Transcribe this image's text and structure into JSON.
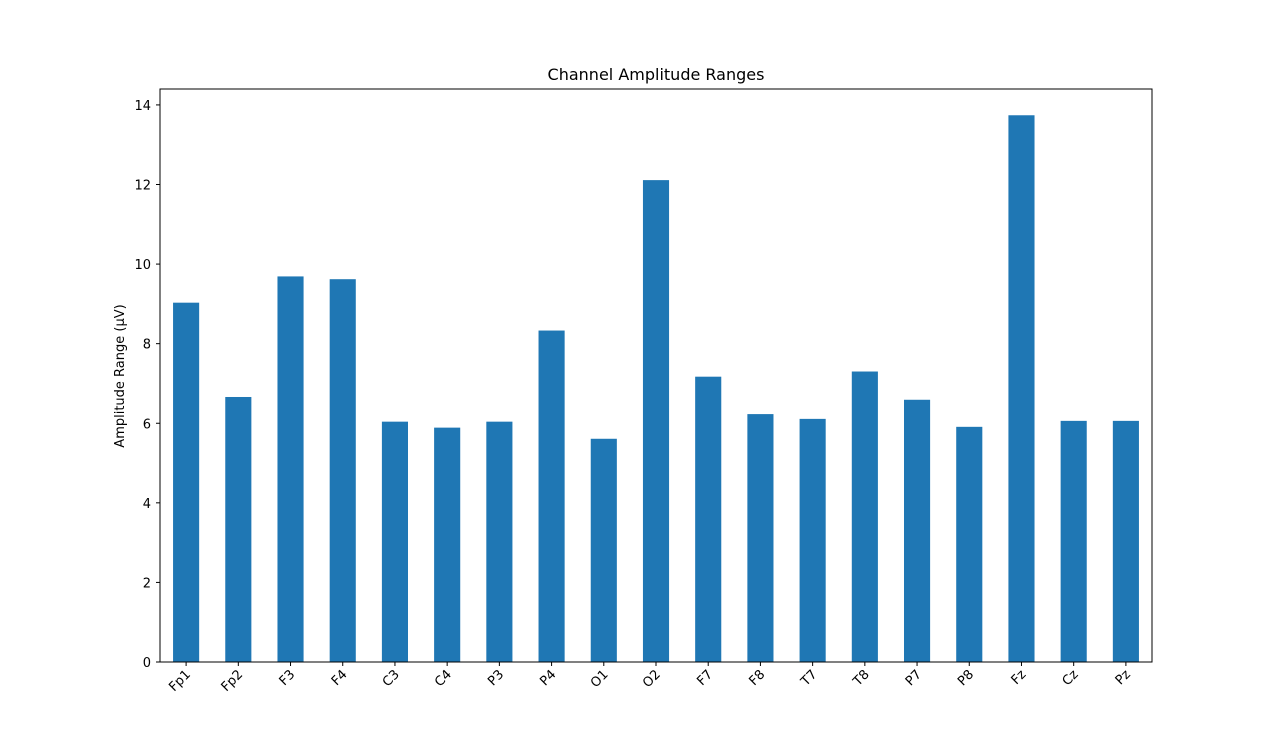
{
  "chart_data": {
    "type": "bar",
    "title": "Channel Amplitude Ranges",
    "xlabel": "",
    "ylabel": "Amplitude Range (µV)",
    "categories": [
      "Fp1",
      "Fp2",
      "F3",
      "F4",
      "C3",
      "C4",
      "P3",
      "P4",
      "O1",
      "O2",
      "F7",
      "F8",
      "T7",
      "T8",
      "P7",
      "P8",
      "Fz",
      "Cz",
      "Pz"
    ],
    "values": [
      9.03,
      6.66,
      9.69,
      9.62,
      6.04,
      5.89,
      6.04,
      8.33,
      5.61,
      12.11,
      7.17,
      6.23,
      6.11,
      7.3,
      6.59,
      5.91,
      13.74,
      6.06,
      6.06
    ],
    "ylim": [
      0,
      14.4
    ],
    "yticks": [
      "0",
      "2",
      "4",
      "6",
      "8",
      "10",
      "12",
      "14"
    ],
    "grid": false,
    "legend": "none",
    "bar_color": "#1f77b4"
  }
}
